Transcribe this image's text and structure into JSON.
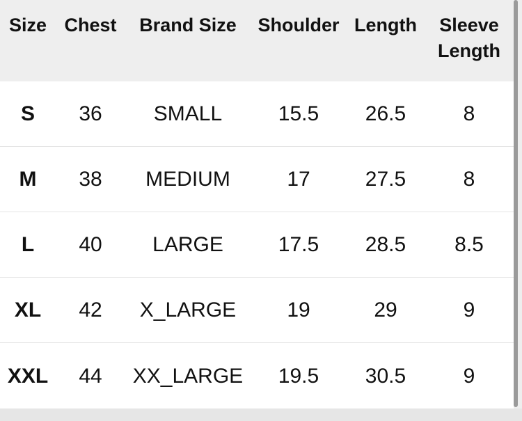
{
  "headers": [
    "Size",
    "Chest",
    "Brand Size",
    "Shoulder",
    "Length",
    "Sleeve Length"
  ],
  "rows": [
    [
      "S",
      "36",
      "SMALL",
      "15.5",
      "26.5",
      "8"
    ],
    [
      "M",
      "38",
      "MEDIUM",
      "17",
      "27.5",
      "8"
    ],
    [
      "L",
      "40",
      "LARGE",
      "17.5",
      "28.5",
      "8.5"
    ],
    [
      "XL",
      "42",
      "X_LARGE",
      "19",
      "29",
      "9"
    ],
    [
      "XXL",
      "44",
      "XX_LARGE",
      "19.5",
      "30.5",
      "9"
    ]
  ]
}
